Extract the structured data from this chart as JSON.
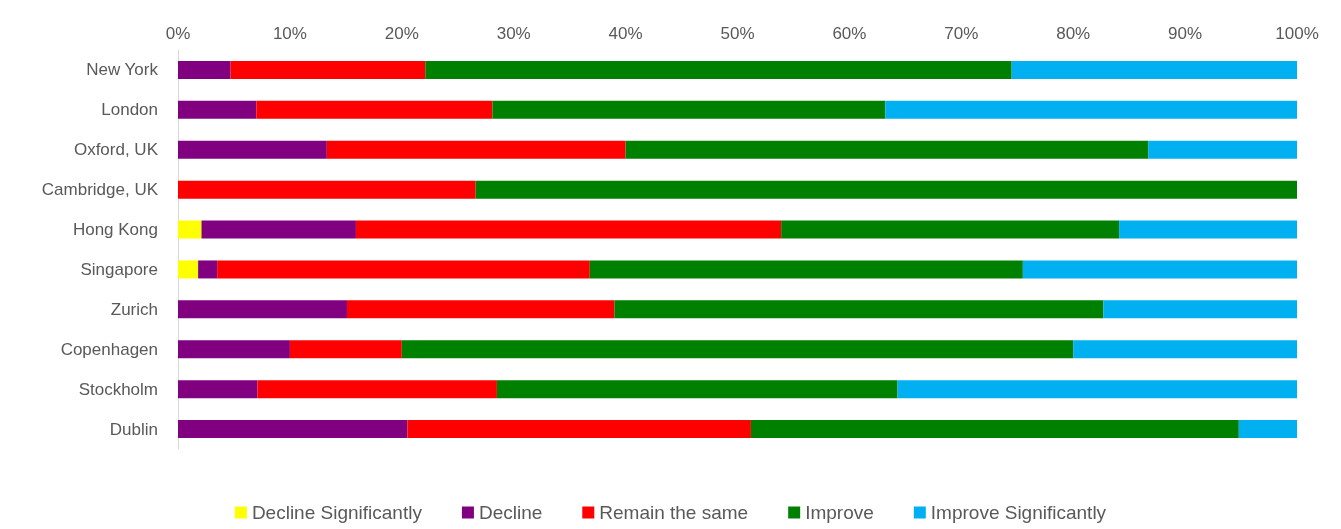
{
  "chart_data": {
    "type": "bar",
    "orientation": "horizontal",
    "stacked": true,
    "categories": [
      "New York",
      "London",
      "Oxford, UK",
      "Cambridge, UK",
      "Hong Kong",
      "Singapore",
      "Zurich",
      "Copenhagen",
      "Stockholm",
      "Dublin"
    ],
    "series": [
      {
        "name": "Decline Significantly",
        "color": "#ffff00",
        "values": [
          0,
          0,
          0,
          0,
          2.1,
          1.8,
          0,
          0,
          0,
          0
        ]
      },
      {
        "name": "Decline",
        "color": "#800080",
        "values": [
          4.7,
          7.0,
          13.3,
          0,
          13.8,
          1.7,
          15.1,
          10.0,
          7.1,
          20.5
        ]
      },
      {
        "name": "Remain the same",
        "color": "#ff0000",
        "values": [
          17.4,
          21.1,
          26.7,
          26.6,
          38.0,
          33.3,
          23.9,
          10.0,
          21.4,
          30.7
        ]
      },
      {
        "name": "Improve",
        "color": "#008000",
        "values": [
          52.4,
          35.1,
          46.7,
          73.4,
          30.2,
          38.7,
          43.7,
          60.0,
          35.8,
          43.6
        ]
      },
      {
        "name": "Improve Significantly",
        "color": "#00b0f0",
        "values": [
          25.5,
          36.8,
          13.3,
          0,
          15.9,
          24.5,
          17.3,
          20.0,
          35.7,
          5.2
        ]
      }
    ],
    "xlim": [
      0,
      100
    ],
    "xticks": [
      {
        "value": 0,
        "label": "0%"
      },
      {
        "value": 10,
        "label": "10%"
      },
      {
        "value": 20,
        "label": "20%"
      },
      {
        "value": 30,
        "label": "30%"
      },
      {
        "value": 40,
        "label": "40%"
      },
      {
        "value": 50,
        "label": "50%"
      },
      {
        "value": 60,
        "label": "60%"
      },
      {
        "value": 70,
        "label": "70%"
      },
      {
        "value": 80,
        "label": "80%"
      },
      {
        "value": 90,
        "label": "90%"
      },
      {
        "value": 100,
        "label": "100%"
      }
    ],
    "grid": false,
    "legend": "bottom"
  }
}
